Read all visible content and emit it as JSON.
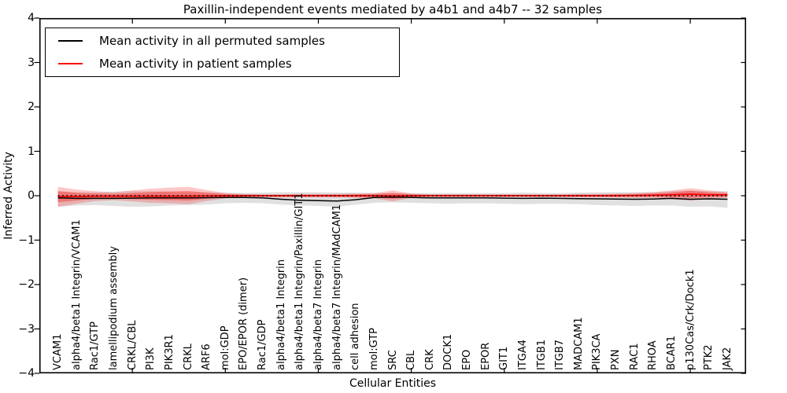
{
  "figure": {
    "title": "Paxillin-independent events mediated by a4b1 and a4b7 -- 32 samples",
    "xlabel": "Cellular Entities",
    "ylabel": "Inferred Activity"
  },
  "legend": {
    "items": [
      {
        "label": "Mean activity in all permuted samples",
        "color": "#000000"
      },
      {
        "label": "Mean activity in patient samples",
        "color": "#ff0000"
      }
    ],
    "position": "upper left"
  },
  "chart_data": {
    "type": "line",
    "title": "Paxillin-independent events mediated by a4b1 and a4b7 -- 32 samples",
    "xlabel": "Cellular Entities",
    "ylabel": "Inferred Activity",
    "ylim": [
      -4,
      4
    ],
    "yticks": [
      4,
      3,
      2,
      1,
      0,
      -1,
      -2,
      -3,
      -4
    ],
    "xticks": [
      5,
      10,
      15,
      20,
      25,
      30,
      35
    ],
    "grid": false,
    "legend_position": "upper left",
    "zero_line": 0,
    "categories": [
      "VCAM1",
      "alpha4/beta1 Integrin/VCAM1",
      "Rac1/GTP",
      "lamellipodium assembly",
      "CRKL/CBL",
      "PI3K",
      "PIK3R1",
      "CRKL",
      "ARF6",
      "mol:GDP",
      "EPO/EPOR (dimer)",
      "Rac1/GDP",
      "alpha4/beta1 Integrin",
      "alpha4/beta1 Integrin/Paxillin/GIT1",
      "alpha4/beta7 Integrin",
      "alpha4/beta7 Integrin/MAdCAM1",
      "cell adhesion",
      "mol:GTP",
      "SRC",
      "CBL",
      "CRK",
      "DOCK1",
      "EPO",
      "EPOR",
      "GIT1",
      "ITGA4",
      "ITGB1",
      "ITGB7",
      "MADCAM1",
      "PIK3CA",
      "PXN",
      "RAC1",
      "RHOA",
      "BCAR1",
      "p130Cas/Crk/Dock1",
      "PTK2",
      "JAK2"
    ],
    "series": [
      {
        "name": "Mean activity in all permuted samples",
        "color": "#000000",
        "style": "solid",
        "values": [
          -0.05,
          -0.06,
          -0.06,
          -0.06,
          -0.055,
          -0.05,
          -0.05,
          -0.05,
          -0.045,
          -0.04,
          -0.04,
          -0.05,
          -0.08,
          -0.1,
          -0.11,
          -0.12,
          -0.09,
          -0.04,
          -0.03,
          -0.04,
          -0.05,
          -0.05,
          -0.05,
          -0.05,
          -0.055,
          -0.06,
          -0.055,
          -0.06,
          -0.065,
          -0.07,
          -0.075,
          -0.08,
          -0.075,
          -0.06,
          -0.08,
          -0.07,
          -0.08
        ]
      },
      {
        "name": "Mean activity in patient samples",
        "color": "#ff0000",
        "style": "solid",
        "values": [
          -0.02,
          -0.02,
          -0.01,
          -0.01,
          -0.01,
          -0.01,
          -0.01,
          -0.01,
          -0.005,
          0,
          0,
          0,
          0,
          0,
          0,
          0,
          0,
          0,
          -0.005,
          0,
          0,
          0,
          0,
          0,
          0,
          0,
          0,
          0,
          0,
          0,
          0,
          0.005,
          0.01,
          0.02,
          0.035,
          0.02,
          0.02
        ]
      },
      {
        "name": "zero reference",
        "color": "#000000",
        "style": "dotted",
        "values": [
          0,
          0,
          0,
          0,
          0,
          0,
          0,
          0,
          0,
          0,
          0,
          0,
          0,
          0,
          0,
          0,
          0,
          0,
          0,
          0,
          0,
          0,
          0,
          0,
          0,
          0,
          0,
          0,
          0,
          0,
          0,
          0,
          0,
          0,
          0,
          0,
          0
        ]
      }
    ],
    "bands": [
      {
        "name": "permuted-samples-range",
        "color": "#999999",
        "opacity": 0.3,
        "lower": [
          -0.25,
          -0.22,
          -0.21,
          -0.23,
          -0.25,
          -0.24,
          -0.22,
          -0.21,
          -0.2,
          -0.17,
          -0.16,
          -0.17,
          -0.2,
          -0.22,
          -0.23,
          -0.25,
          -0.2,
          -0.16,
          -0.15,
          -0.16,
          -0.17,
          -0.18,
          -0.17,
          -0.17,
          -0.18,
          -0.19,
          -0.18,
          -0.18,
          -0.19,
          -0.21,
          -0.22,
          -0.23,
          -0.22,
          -0.22,
          -0.25,
          -0.24,
          -0.27
        ],
        "upper": [
          0.1,
          0.08,
          0.08,
          0.09,
          0.1,
          0.1,
          0.09,
          0.08,
          0.08,
          0.07,
          0.06,
          0.07,
          0.08,
          0.08,
          0.08,
          0.07,
          0.07,
          0.06,
          0.06,
          0.06,
          0.06,
          0.06,
          0.06,
          0.06,
          0.06,
          0.07,
          0.06,
          0.06,
          0.07,
          0.08,
          0.08,
          0.08,
          0.08,
          0.1,
          0.12,
          0.1,
          0.1
        ]
      },
      {
        "name": "patient-samples-range-outer",
        "color": "#ff0000",
        "opacity": 0.22,
        "lower": [
          -0.25,
          -0.18,
          -0.12,
          -0.1,
          -0.13,
          -0.16,
          -0.17,
          -0.19,
          -0.12,
          -0.06,
          -0.04,
          -0.04,
          -0.04,
          -0.04,
          -0.04,
          -0.04,
          -0.05,
          -0.06,
          -0.13,
          -0.05,
          -0.03,
          -0.03,
          -0.03,
          -0.03,
          -0.03,
          -0.03,
          -0.03,
          -0.03,
          -0.04,
          -0.04,
          -0.04,
          -0.05,
          -0.05,
          -0.08,
          -0.11,
          -0.07,
          -0.05
        ],
        "upper": [
          0.2,
          0.14,
          0.1,
          0.08,
          0.12,
          0.16,
          0.18,
          0.2,
          0.13,
          0.06,
          0.04,
          0.03,
          0.03,
          0.04,
          0.04,
          0.04,
          0.05,
          0.06,
          0.12,
          0.05,
          0.03,
          0.03,
          0.03,
          0.03,
          0.03,
          0.03,
          0.03,
          0.03,
          0.04,
          0.04,
          0.05,
          0.06,
          0.08,
          0.12,
          0.17,
          0.12,
          0.08
        ]
      },
      {
        "name": "patient-samples-range-inner",
        "color": "#ff0000",
        "opacity": 0.33,
        "lower": [
          -0.147,
          -0.108,
          -0.071,
          -0.06,
          -0.076,
          -0.093,
          -0.098,
          -0.109,
          -0.068,
          -0.033,
          -0.022,
          -0.022,
          -0.022,
          -0.022,
          -0.022,
          -0.022,
          -0.028,
          -0.033,
          -0.074,
          -0.028,
          -0.017,
          -0.017,
          -0.017,
          -0.017,
          -0.017,
          -0.017,
          -0.017,
          -0.017,
          -0.022,
          -0.022,
          -0.022,
          -0.025,
          -0.023,
          -0.035,
          -0.045,
          -0.03,
          -0.019
        ],
        "upper": [
          0.101,
          0.068,
          0.051,
          0.04,
          0.062,
          0.084,
          0.095,
          0.106,
          0.069,
          0.033,
          0.022,
          0.017,
          0.017,
          0.022,
          0.022,
          0.022,
          0.028,
          0.033,
          0.064,
          0.028,
          0.017,
          0.017,
          0.017,
          0.017,
          0.017,
          0.017,
          0.017,
          0.017,
          0.022,
          0.022,
          0.028,
          0.035,
          0.049,
          0.075,
          0.109,
          0.075,
          0.053
        ]
      }
    ]
  }
}
